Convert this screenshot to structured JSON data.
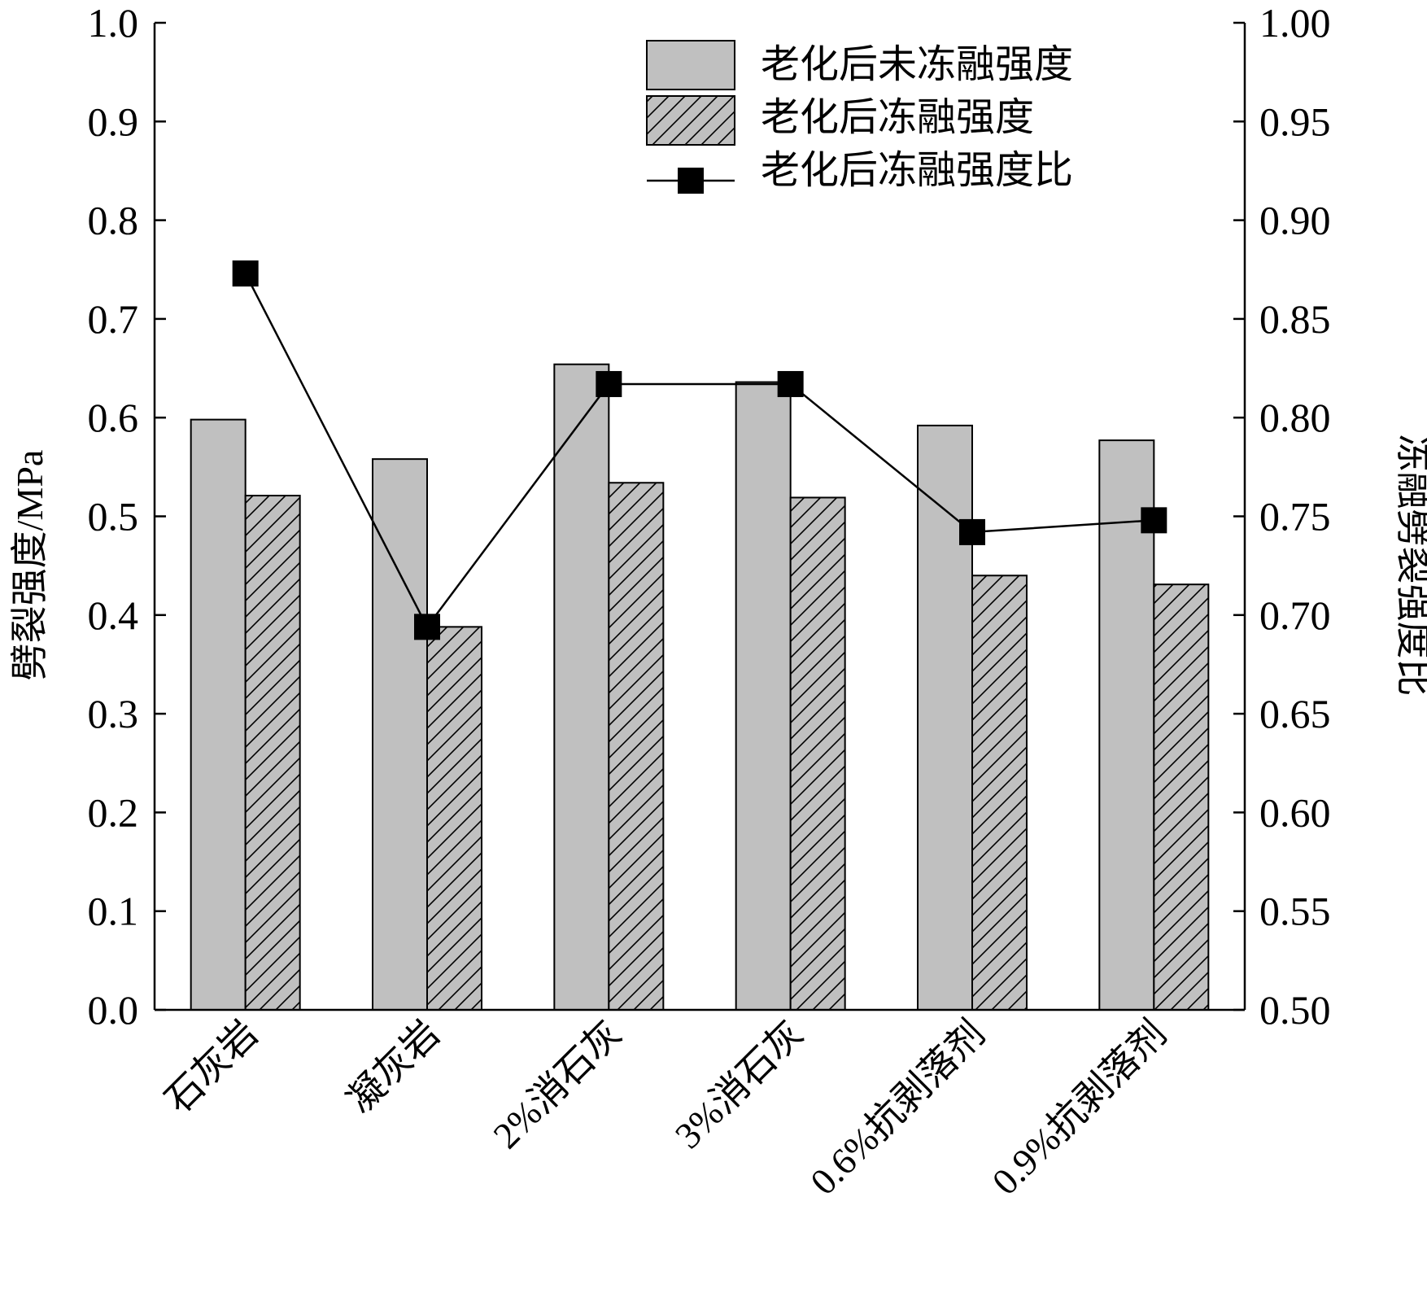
{
  "chart_data": {
    "type": "bar",
    "categories": [
      "石灰岩",
      "凝灰岩",
      "2%消石灰",
      "3%消石灰",
      "0.6%抗剥落剂",
      "0.9%抗剥落剂"
    ],
    "series": [
      {
        "name": "老化后未冻融强度",
        "type": "bar",
        "axis": "left",
        "values": [
          0.598,
          0.558,
          0.654,
          0.636,
          0.592,
          0.577
        ],
        "fill": "#c0c0c0",
        "pattern": "solid"
      },
      {
        "name": "老化后冻融强度",
        "type": "bar",
        "axis": "left",
        "values": [
          0.521,
          0.388,
          0.534,
          0.519,
          0.44,
          0.431
        ],
        "fill": "#c0c0c0",
        "pattern": "hatch"
      },
      {
        "name": "老化后冻融强度比",
        "type": "line",
        "axis": "right",
        "values": [
          0.873,
          0.694,
          0.817,
          0.817,
          0.742,
          0.748
        ],
        "color": "#000000",
        "marker": "square"
      }
    ],
    "y_left": {
      "label": "劈裂强度/MPa",
      "range": [
        0.0,
        1.0
      ],
      "ticks": [
        "0.0",
        "0.1",
        "0.2",
        "0.3",
        "0.4",
        "0.5",
        "0.6",
        "0.7",
        "0.8",
        "0.9",
        "1.0"
      ]
    },
    "y_right": {
      "label": "冻融劈裂强度比",
      "range": [
        0.5,
        1.0
      ],
      "ticks": [
        "0.50",
        "0.55",
        "0.60",
        "0.65",
        "0.70",
        "0.75",
        "0.80",
        "0.85",
        "0.90",
        "0.95",
        "1.00"
      ]
    },
    "legend": {
      "position": "top-right",
      "entries": [
        "老化后未冻融强度",
        "老化后冻融强度",
        "老化后冻融强度比"
      ]
    },
    "grid": false
  }
}
